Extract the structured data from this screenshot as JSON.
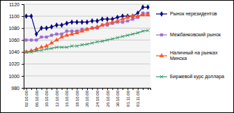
{
  "chart_data": {
    "type": "line",
    "categories": [
      "02.10.00",
      null,
      "06.10.00",
      null,
      "10.10.00",
      null,
      "12.10.00",
      null,
      "16.10.00",
      null,
      "18.10.00",
      null,
      "20.10.00",
      null,
      "24.10.00",
      null,
      "26.10.00",
      null,
      "30.10.00",
      null,
      "01.11.00",
      null,
      "03.11.00",
      null,
      null
    ],
    "series": [
      {
        "name": "Рынок нерезидентов",
        "color": "#000080",
        "marker": "diamond",
        "values": [
          1100,
          1100,
          1070,
          1080,
          1080,
          1082,
          1085,
          1085,
          1088,
          1090,
          1090,
          1090,
          1090,
          1092,
          1092,
          1095,
          1095,
          1095,
          1098,
          1100,
          1100,
          1100,
          1105,
          1115,
          1115
        ]
      },
      {
        "name": "Межбанковский рынок",
        "color": "#9c6ccc",
        "marker": "square",
        "values": [
          1060,
          1060,
          1060,
          1065,
          1065,
          1068,
          1070,
          1070,
          1075,
          1075,
          1075,
          1078,
          1078,
          1080,
          1080,
          1085,
          1085,
          1088,
          1090,
          1090,
          1092,
          1095,
          1098,
          1105,
          1105
        ]
      },
      {
        "name": "Наличный на рынках Минска",
        "color": "#ff5020",
        "marker": "triangle",
        "values": [
          1040,
          1042,
          1045,
          1048,
          1050,
          1055,
          1060,
          1065,
          1068,
          1070,
          1072,
          1075,
          1078,
          1080,
          1082,
          1085,
          1088,
          1090,
          1092,
          1095,
          1098,
          1100,
          1100,
          1102,
          1102
        ]
      },
      {
        "name": "Биржевой курс доллара",
        "color": "#339966",
        "marker": "x",
        "values": [
          1040,
          1040,
          1042,
          1043,
          1045,
          1046,
          1048,
          1048,
          1048,
          1050,
          1050,
          1052,
          1053,
          1055,
          1057,
          1058,
          1060,
          1062,
          1064,
          1066,
          1068,
          1070,
          1072,
          1075,
          1076
        ]
      }
    ],
    "ylim": [
      980,
      1120
    ],
    "yticks": [
      980,
      1000,
      1020,
      1040,
      1060,
      1080,
      1100,
      1120
    ],
    "grid": true,
    "legend": "right"
  }
}
